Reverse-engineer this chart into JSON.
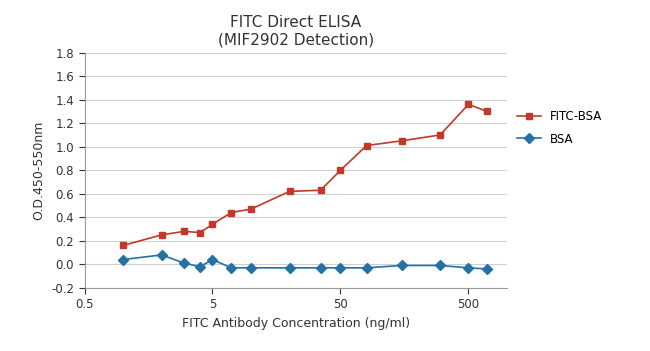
{
  "title_line1": "FITC Direct ELISA",
  "title_line2": "(MIF2902 Detection)",
  "xlabel": "FITC Antibody Concentration (ng/ml)",
  "ylabel": "O.D.450-550nm",
  "xlim": [
    0.5,
    1000
  ],
  "ylim": [
    -0.2,
    1.8
  ],
  "yticks": [
    -0.2,
    0.0,
    0.2,
    0.4,
    0.6,
    0.8,
    1.0,
    1.2,
    1.4,
    1.6,
    1.8
  ],
  "xticks": [
    0.5,
    5,
    50,
    500
  ],
  "xtick_labels": [
    "0.5",
    "5",
    "50",
    "500"
  ],
  "fitc_bsa_x": [
    1,
    2,
    3,
    4,
    5,
    7,
    10,
    20,
    35,
    50,
    80,
    150,
    300,
    500,
    700
  ],
  "fitc_bsa_y": [
    0.16,
    0.25,
    0.28,
    0.27,
    0.34,
    0.44,
    0.47,
    0.62,
    0.63,
    0.8,
    1.01,
    1.05,
    1.1,
    1.36,
    1.3
  ],
  "bsa_x": [
    1,
    2,
    3,
    4,
    5,
    7,
    10,
    20,
    35,
    50,
    80,
    150,
    300,
    500,
    700
  ],
  "bsa_y": [
    0.04,
    0.08,
    0.01,
    -0.02,
    0.04,
    -0.03,
    -0.03,
    -0.03,
    -0.03,
    -0.03,
    -0.03,
    -0.01,
    -0.01,
    -0.03,
    -0.04
  ],
  "fitc_bsa_color": "#c0392b",
  "bsa_color": "#2471a3",
  "legend_fitc_bsa": "FITC-BSA",
  "legend_bsa": "BSA",
  "marker_size": 5,
  "line_width": 1.2,
  "title_fontsize": 11,
  "label_fontsize": 9,
  "tick_fontsize": 8.5
}
